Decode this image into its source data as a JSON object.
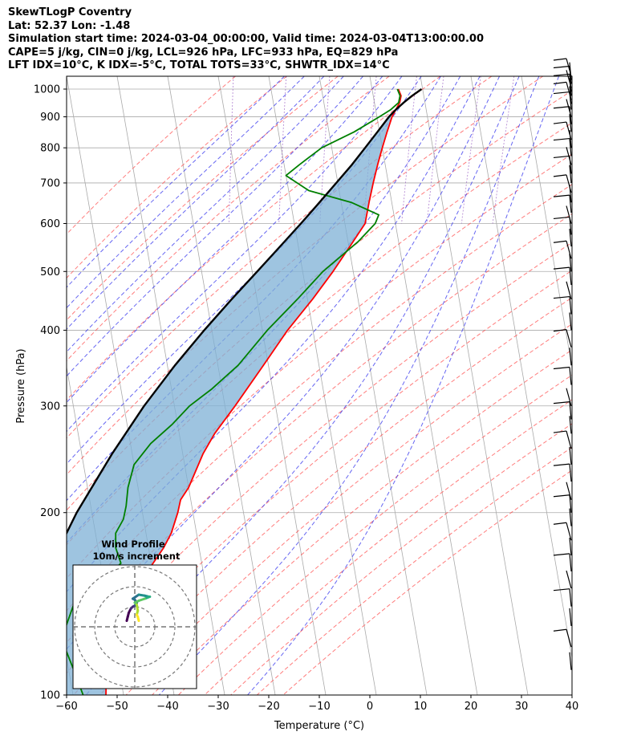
{
  "title_lines": [
    "SkewTLogP Coventry",
    "Lat: 52.37   Lon: -1.48",
    "Simulation start time: 2024-03-04_00:00:00, Valid time: 2024-03-04T13:00:00.00",
    "CAPE=5 j/kg, CIN=0 j/kg, LCL=926 hPa, LFC=933 hPa, EQ=829 hPa",
    "LFT IDX=10°C, K IDX=-5°C, TOTAL TOTS=33°C, SHWTR_IDX=14°C"
  ],
  "chart_data": {
    "type": "skewt-logp",
    "station": "Coventry",
    "xlabel": "Temperature (°C)",
    "ylabel": "Pressure (hPa)",
    "xlim": [
      -60,
      40
    ],
    "ylim": [
      1050,
      100
    ],
    "xticks": [
      -60,
      -50,
      -40,
      -30,
      -20,
      -10,
      0,
      10,
      20,
      30,
      40
    ],
    "xtick_labels": [
      "−60",
      "−50",
      "−40",
      "−30",
      "−20",
      "−10",
      "0",
      "10",
      "20",
      "30",
      "40"
    ],
    "yticks": [
      100,
      200,
      300,
      400,
      500,
      600,
      700,
      800,
      900,
      1000
    ],
    "ytick_labels": [
      "100",
      "200",
      "300",
      "400",
      "500",
      "600",
      "700",
      "800",
      "900",
      "1000"
    ],
    "colors": {
      "temperature": "#ff0000",
      "dewpoint": "#008000",
      "parcel": "#000000",
      "shade": "#7eb0d5",
      "dry_adiabat": "#ff4444",
      "moist_adiabat": "#3333ee",
      "mixing_ratio": "#8844bb",
      "isotherm": "#aaaaaa",
      "isobar": "#aaaaaa"
    },
    "temperature": [
      [
        1000,
        5.2
      ],
      [
        975,
        5.5
      ],
      [
        950,
        5.0
      ],
      [
        925,
        4.0
      ],
      [
        900,
        3.0
      ],
      [
        850,
        1.5
      ],
      [
        800,
        0.0
      ],
      [
        750,
        -1.5
      ],
      [
        700,
        -3.0
      ],
      [
        650,
        -4.5
      ],
      [
        600,
        -6.0
      ],
      [
        560,
        -9.0
      ],
      [
        500,
        -14.0
      ],
      [
        450,
        -19.0
      ],
      [
        400,
        -25.0
      ],
      [
        350,
        -31.0
      ],
      [
        300,
        -38.0
      ],
      [
        270,
        -43.0
      ],
      [
        250,
        -46.0
      ],
      [
        220,
        -50.0
      ],
      [
        210,
        -52.0
      ],
      [
        200,
        -53.0
      ],
      [
        185,
        -55.0
      ],
      [
        175,
        -57.0
      ],
      [
        160,
        -61.0
      ],
      [
        150,
        -64.0
      ],
      [
        140,
        -67.0
      ],
      [
        130,
        -69.5
      ],
      [
        120,
        -71.0
      ],
      [
        110,
        -72.5
      ],
      [
        100,
        -73.5
      ]
    ],
    "dewpoint": [
      [
        1000,
        5.0
      ],
      [
        975,
        5.3
      ],
      [
        950,
        4.8
      ],
      [
        925,
        3.0
      ],
      [
        900,
        0.5
      ],
      [
        850,
        -5.0
      ],
      [
        800,
        -12.0
      ],
      [
        750,
        -17.0
      ],
      [
        720,
        -20.0
      ],
      [
        680,
        -16.0
      ],
      [
        650,
        -8.0
      ],
      [
        620,
        -3.0
      ],
      [
        600,
        -4.0
      ],
      [
        560,
        -8.0
      ],
      [
        500,
        -16.0
      ],
      [
        450,
        -22.0
      ],
      [
        400,
        -29.0
      ],
      [
        350,
        -36.0
      ],
      [
        320,
        -42.0
      ],
      [
        300,
        -47.0
      ],
      [
        280,
        -51.0
      ],
      [
        260,
        -56.0
      ],
      [
        240,
        -60.0
      ],
      [
        220,
        -62.0
      ],
      [
        205,
        -63.0
      ],
      [
        195,
        -64.0
      ],
      [
        185,
        -66.0
      ],
      [
        175,
        -66.5
      ],
      [
        165,
        -66.0
      ],
      [
        155,
        -70.0
      ],
      [
        145,
        -76.0
      ],
      [
        130,
        -79.0
      ],
      [
        120,
        -80.0
      ],
      [
        110,
        -79.0
      ],
      [
        100,
        -78.0
      ]
    ],
    "parcel": [
      [
        1000,
        9.8
      ],
      [
        975,
        7.7
      ],
      [
        950,
        5.8
      ],
      [
        925,
        4.0
      ],
      [
        900,
        2.4
      ],
      [
        850,
        -0.4
      ],
      [
        800,
        -3.4
      ],
      [
        750,
        -6.6
      ],
      [
        700,
        -10.3
      ],
      [
        650,
        -14.3
      ],
      [
        600,
        -18.7
      ],
      [
        550,
        -23.6
      ],
      [
        500,
        -29.0
      ],
      [
        450,
        -35.0
      ],
      [
        400,
        -41.5
      ],
      [
        350,
        -48.5
      ],
      [
        300,
        -56.0
      ],
      [
        250,
        -64.0
      ],
      [
        200,
        -73.0
      ],
      [
        150,
        -83.0
      ],
      [
        120,
        -89.5
      ],
      [
        100,
        -94.0
      ]
    ],
    "mixing_ratio_labels": [],
    "hodograph": {
      "title": "Wind Profile",
      "subtitle": "10m/s increment",
      "rings": [
        10,
        20,
        30
      ],
      "points": [
        [
          -4,
          3
        ],
        [
          -3.5,
          5
        ],
        [
          -3,
          7
        ],
        [
          -2,
          9
        ],
        [
          -1,
          10
        ],
        [
          0,
          10.5
        ],
        [
          1,
          12
        ],
        [
          0,
          13.5
        ],
        [
          -1,
          14
        ],
        [
          0.5,
          15
        ],
        [
          2,
          16
        ],
        [
          5,
          15.5
        ],
        [
          7,
          15
        ],
        [
          7.5,
          15
        ],
        [
          5,
          14
        ],
        [
          2,
          13
        ],
        [
          0,
          12
        ],
        [
          1,
          11
        ],
        [
          1.5,
          8
        ],
        [
          1,
          6
        ],
        [
          1.5,
          5
        ],
        [
          2,
          3
        ]
      ]
    },
    "wind_barbs_note": "barbs along right edge"
  }
}
